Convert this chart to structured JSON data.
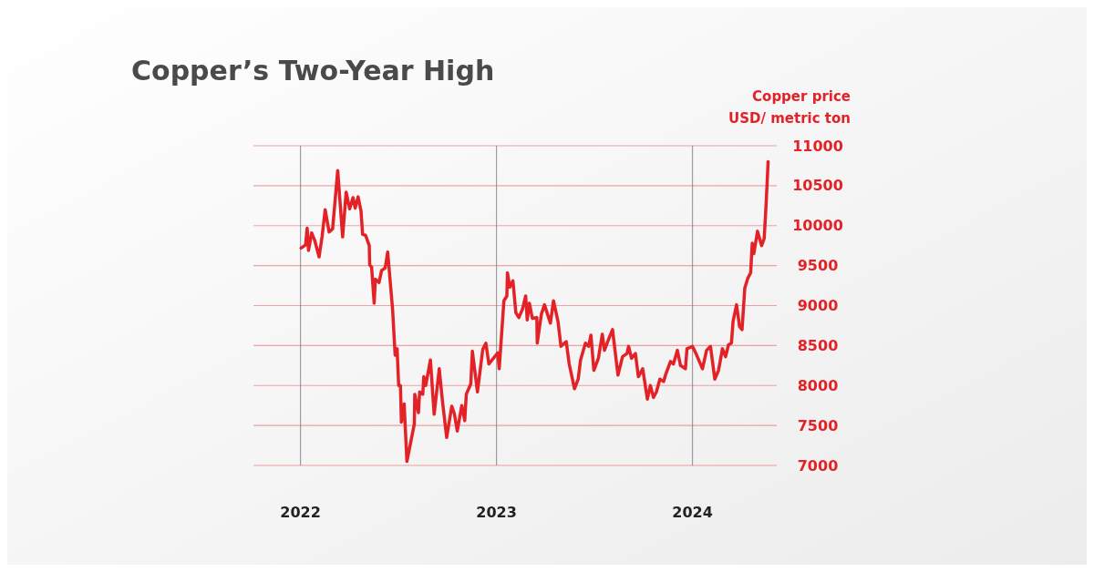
{
  "chart_data": {
    "type": "line",
    "title": "Copper’s Two-Year High",
    "ylabel": "Copper price\nUSD/ metric ton",
    "xlim": [
      2021.76,
      2024.43
    ],
    "xticks": [
      2022,
      2023,
      2024
    ],
    "ylim": [
      7000,
      11000
    ],
    "yticks": [
      7000,
      7500,
      8000,
      8500,
      9000,
      9500,
      10000,
      10500,
      11000
    ],
    "grid": true,
    "marker": "none",
    "line_style": "solid",
    "series": [
      {
        "color": "#e32227",
        "x": [
          2022.003,
          2022.026,
          2022.034,
          2022.041,
          2022.057,
          2022.072,
          2022.095,
          2022.11,
          2022.126,
          2022.146,
          2022.164,
          2022.19,
          2022.215,
          2022.233,
          2022.251,
          2022.268,
          2022.279,
          2022.294,
          2022.309,
          2022.317,
          2022.332,
          2022.351,
          2022.353,
          2022.363,
          2022.376,
          2022.382,
          2022.401,
          2022.414,
          2022.432,
          2022.445,
          2022.47,
          2022.483,
          2022.493,
          2022.501,
          2022.51,
          2022.515,
          2022.529,
          2022.543,
          2022.581,
          2022.583,
          2022.602,
          2022.608,
          2022.624,
          2022.629,
          2022.639,
          2022.663,
          2022.682,
          2022.708,
          2022.725,
          2022.746,
          2022.772,
          2022.785,
          2022.8,
          2022.823,
          2022.838,
          2022.846,
          2022.869,
          2022.877,
          2022.903,
          2022.93,
          2022.946,
          2022.961,
          2023.007,
          2023.014,
          2023.038,
          2023.053,
          2023.056,
          2023.068,
          2023.084,
          2023.099,
          2023.114,
          2023.132,
          2023.149,
          2023.157,
          2023.168,
          2023.183,
          2023.206,
          2023.208,
          2023.229,
          2023.245,
          2023.275,
          2023.291,
          2023.314,
          2023.329,
          2023.356,
          2023.371,
          2023.398,
          2023.417,
          2023.429,
          2023.454,
          2023.47,
          2023.482,
          2023.497,
          2023.52,
          2023.54,
          2023.551,
          2023.571,
          2023.592,
          2023.62,
          2023.643,
          2023.666,
          2023.674,
          2023.689,
          2023.709,
          2023.724,
          2023.746,
          2023.77,
          2023.785,
          2023.801,
          2023.816,
          2023.834,
          2023.853,
          2023.865,
          2023.888,
          2023.903,
          2023.923,
          2023.939,
          2023.964,
          2023.972,
          2024.0,
          2024.018,
          2024.051,
          2024.072,
          2024.092,
          2024.114,
          2024.133,
          2024.153,
          2024.169,
          2024.184,
          2024.199,
          2024.207,
          2024.225,
          2024.24,
          2024.253,
          2024.267,
          2024.282,
          2024.297,
          2024.305,
          2024.313,
          2024.332,
          2024.353,
          2024.366,
          2024.376,
          2024.386
        ],
        "values": [
          9720,
          9760,
          9970,
          9690,
          9910,
          9820,
          9610,
          9860,
          10200,
          9920,
          9960,
          10690,
          9860,
          10420,
          10210,
          10350,
          10220,
          10360,
          10180,
          9890,
          9880,
          9750,
          9510,
          9480,
          9030,
          9330,
          9290,
          9440,
          9470,
          9670,
          8950,
          8380,
          8460,
          8000,
          8000,
          7540,
          7770,
          7050,
          7520,
          7890,
          7660,
          7920,
          7890,
          8110,
          8000,
          8320,
          7640,
          8210,
          7790,
          7350,
          7740,
          7650,
          7430,
          7750,
          7560,
          7890,
          8020,
          8430,
          7920,
          8450,
          8530,
          8270,
          8410,
          8210,
          9060,
          9120,
          9410,
          9230,
          9310,
          8910,
          8850,
          8950,
          9120,
          8820,
          9030,
          8840,
          8850,
          8530,
          8890,
          9010,
          8780,
          9060,
          8800,
          8490,
          8550,
          8270,
          7960,
          8080,
          8320,
          8530,
          8490,
          8630,
          8190,
          8340,
          8640,
          8440,
          8570,
          8700,
          8130,
          8360,
          8400,
          8490,
          8340,
          8400,
          8110,
          8210,
          7830,
          8000,
          7850,
          7920,
          8080,
          8050,
          8150,
          8300,
          8270,
          8440,
          8250,
          8210,
          8460,
          8490,
          8400,
          8210,
          8440,
          8490,
          8080,
          8190,
          8460,
          8360,
          8510,
          8530,
          8800,
          9010,
          8740,
          8700,
          9220,
          9340,
          9410,
          9780,
          9650,
          9930,
          9750,
          9840,
          10280,
          10800
        ]
      }
    ]
  }
}
